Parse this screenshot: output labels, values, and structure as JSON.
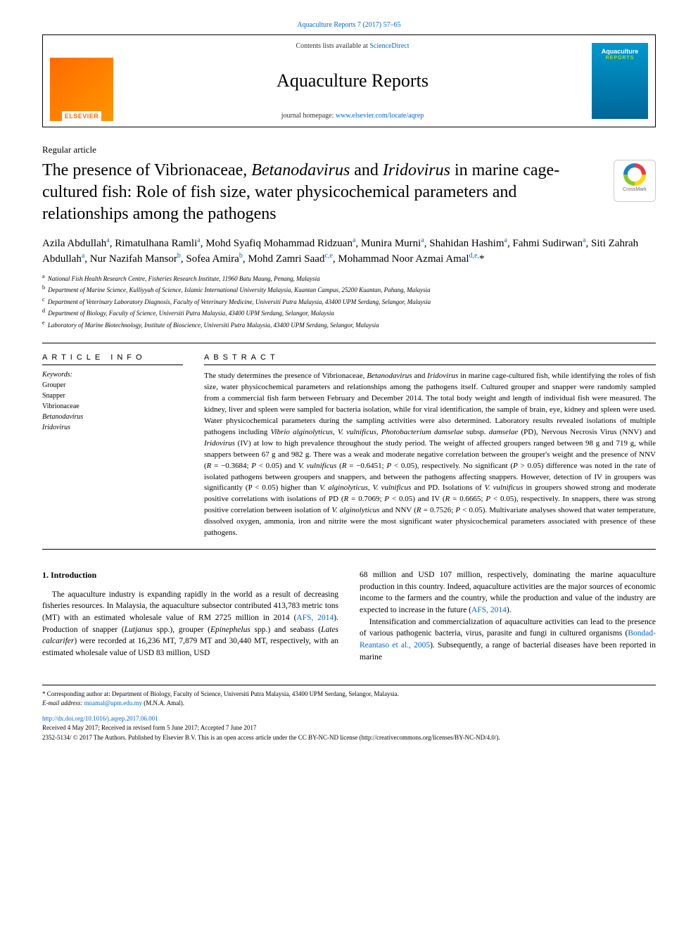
{
  "header": {
    "citation": "Aquaculture Reports 7 (2017) 57–65",
    "contents_prefix": "Contents lists available at ",
    "contents_link": "ScienceDirect",
    "journal_name": "Aquaculture Reports",
    "homepage_prefix": "journal homepage: ",
    "homepage_link": "www.elsevier.com/locate/aqrep",
    "publisher_logo_text": "ELSEVIER",
    "cover_title": "Aquaculture",
    "cover_sub": "REPORTS"
  },
  "article": {
    "type": "Regular article",
    "title_parts": [
      {
        "text": "The presence of Vibrionaceae, ",
        "italic": false
      },
      {
        "text": "Betanodavirus",
        "italic": true
      },
      {
        "text": " and ",
        "italic": false
      },
      {
        "text": "Iridovirus",
        "italic": true
      },
      {
        "text": " in marine cage-cultured fish: Role of fish size, water physicochemical parameters and relationships among the pathogens",
        "italic": false
      }
    ],
    "crossmark_label": "CrossMark",
    "authors_html": "Azila Abdullah<sup>a</sup>, Rimatulhana Ramli<sup>a</sup>, Mohd Syafiq Mohammad Ridzuan<sup>a</sup>, Munira Murni<sup>a</sup>, Shahidan Hashim<sup>a</sup>, Fahmi Sudirwan<sup>a</sup>, Siti Zahrah Abdullah<sup>a</sup>, Nur Nazifah Mansor<sup>b</sup>, Sofea Amira<sup>b</sup>, Mohd Zamri Saad<sup>c,e</sup>, Mohammad Noor Azmai Amal<sup>d,e,</sup>*",
    "affiliations": [
      {
        "key": "a",
        "text": "National Fish Health Research Centre, Fisheries Research Institute, 11960 Batu Maung, Penang, Malaysia"
      },
      {
        "key": "b",
        "text": "Department of Marine Science, Kulliyyah of Science, Islamic International University Malaysia, Kuantan Campus, 25200 Kuantan, Pahang, Malaysia"
      },
      {
        "key": "c",
        "text": "Department of Veterinary Laboratory Diagnosis, Faculty of Veterinary Medicine, Universiti Putra Malaysia, 43400 UPM Serdang, Selangor, Malaysia"
      },
      {
        "key": "d",
        "text": "Department of Biology, Faculty of Science, Universiti Putra Malaysia, 43400 UPM Serdang, Selangor, Malaysia"
      },
      {
        "key": "e",
        "text": "Laboratory of Marine Biotechnology, Institute of Bioscience, Universiti Putra Malaysia, 43400 UPM Serdang, Selangor, Malaysia"
      }
    ]
  },
  "info": {
    "section_head": "ARTICLE INFO",
    "keywords_label": "Keywords:",
    "keywords": [
      {
        "text": "Grouper",
        "italic": false
      },
      {
        "text": "Snapper",
        "italic": false
      },
      {
        "text": "Vibrionaceae",
        "italic": false
      },
      {
        "text": "Betanodavirus",
        "italic": true
      },
      {
        "text": "Iridovirus",
        "italic": true
      }
    ]
  },
  "abstract": {
    "section_head": "ABSTRACT",
    "text_html": "The study determines the presence of Vibrionaceae, <span class=\"italic\">Betanodavirus</span> and <span class=\"italic\">Iridovirus</span> in marine cage-cultured fish, while identifying the roles of fish size, water physicochemical parameters and relationships among the pathogens itself. Cultured grouper and snapper were randomly sampled from a commercial fish farm between February and December 2014. The total body weight and length of individual fish were measured. The kidney, liver and spleen were sampled for bacteria isolation, while for viral identification, the sample of brain, eye, kidney and spleen were used. Water physicochemical parameters during the sampling activities were also determined. Laboratory results revealed isolations of multiple pathogens including <span class=\"italic\">Vibrio alginolyticus, V. vulnificus, Photobacterium damselae</span> subsp. <span class=\"italic\">damselae</span> (PD), Nervous Necrosis Virus (NNV) and <span class=\"italic\">Iridovirus</span> (IV) at low to high prevalence throughout the study period. The weight of affected groupers ranged between 98 g and 719 g, while snappers between 67 g and 982 g. There was a weak and moderate negative correlation between the grouper's weight and the presence of NNV (<span class=\"italic\">R</span> = −0.3684; <span class=\"italic\">P</span> &lt; 0.05) and <span class=\"italic\">V. vulnificus</span> (<span class=\"italic\">R</span> = −0.6451; <span class=\"italic\">P</span> &lt; 0.05), respectively. No significant (<span class=\"italic\">P</span> &gt; 0.05) difference was noted in the rate of isolated pathogens between groupers and snappers, and between the pathogens affecting snappers. However, detection of IV in groupers was significantly (P &lt; 0.05) higher than <span class=\"italic\">V. alginolyticus, V. vulnificus</span> and PD. Isolations of <span class=\"italic\">V. vulnificus</span> in groupers showed strong and moderate positive correlations with isolations of PD (<span class=\"italic\">R</span> = 0.7069; <span class=\"italic\">P</span> &lt; 0.05) and IV (<span class=\"italic\">R</span> = 0.6665; <span class=\"italic\">P</span> &lt; 0.05), respectively. In snappers, there was strong positive correlation between isolation of <span class=\"italic\">V. alginolyticus</span> and NNV (<span class=\"italic\">R</span> = 0.7526; <span class=\"italic\">P</span> &lt; 0.05). Multivariate analyses showed that water temperature, dissolved oxygen, ammonia, iron and nitrite were the most significant water physicochemical parameters associated with presence of these pathogens."
  },
  "body": {
    "heading": "1. Introduction",
    "left_html": "<p>The aquaculture industry is expanding rapidly in the world as a result of decreasing fisheries resources. In Malaysia, the aquaculture subsector contributed 413,783 metric tons (MT) with an estimated wholesale value of RM 2725 million in 2014 (<a href=\"#\">AFS, 2014</a>). Production of snapper (<span class=\"italic\">Lutjanus</span> spp.), grouper (<span class=\"italic\">Epinephelus</span> spp.) and seabass (<span class=\"italic\">Lates calcarifer</span>) were recorded at 16,236 MT, 7,879 MT and 30,440 MT, respectively, with an estimated wholesale value of USD 83 million, USD</p>",
    "right_html": "<p class=\"noindent\">68 million and USD 107 million, respectively, dominating the marine aquaculture production in this country. Indeed, aquaculture activities are the major sources of economic income to the farmers and the country, while the production and value of the industry are expected to increase in the future (<a href=\"#\">AFS, 2014</a>).</p><p>Intensification and commercialization of aquaculture activities can lead to the presence of various pathogenic bacteria, virus, parasite and fungi in cultured organisms (<a href=\"#\">Bondad-Reantaso et al., 2005</a>). Subsequently, a range of bacterial diseases have been reported in marine</p>"
  },
  "footer": {
    "corresponding_prefix": "* Corresponding author at: ",
    "corresponding_text": "Department of Biology, Faculty of Science, Universiti Putra Malaysia, 43400 UPM Serdang, Selangor, Malaysia.",
    "email_label": "E-mail address: ",
    "email": "mnamal@upm.edu.my",
    "email_suffix": " (M.N.A. Amal).",
    "doi": "http://dx.doi.org/10.1016/j.aqrep.2017.06.001",
    "received": "Received 4 May 2017; Received in revised form 5 June 2017; Accepted 7 June 2017",
    "license": "2352-5134/ © 2017 The Authors. Published by Elsevier B.V. This is an open access article under the CC BY-NC-ND license (http://creativecommons.org/licenses/BY-NC-ND/4.0/)."
  },
  "colors": {
    "link": "#0066cc",
    "elsevier_orange": "#ff6b00",
    "cover_blue_top": "#0099cc",
    "cover_blue_bottom": "#006699",
    "cover_accent": "#d4ff00"
  }
}
